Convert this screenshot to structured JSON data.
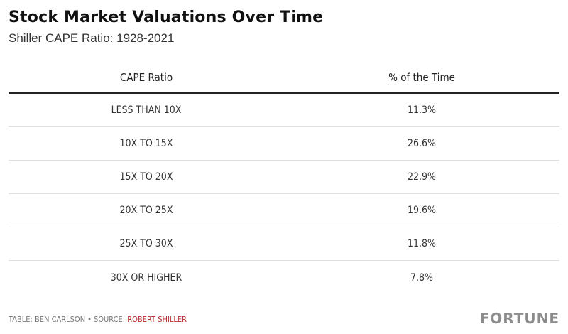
{
  "header": {
    "title": "Stock Market Valuations Over Time",
    "subtitle": "Shiller CAPE Ratio: 1928-2021"
  },
  "chart_data": {
    "type": "table",
    "columns": [
      "CAPE Ratio",
      "% of the Time"
    ],
    "rows": [
      [
        "LESS THAN 10X",
        "11.3%"
      ],
      [
        "10X TO 15X",
        "26.6%"
      ],
      [
        "15X TO 20X",
        "22.9%"
      ],
      [
        "20X TO 25X",
        "19.6%"
      ],
      [
        "25X TO 30X",
        "11.8%"
      ],
      [
        "30X OR HIGHER",
        "7.8%"
      ]
    ]
  },
  "footer": {
    "credit": "TABLE: BEN CARLSON",
    "separator": "•",
    "source_prefix": "SOURCE:",
    "source_link": "ROBERT SHILLER",
    "logo": "FORTUNE"
  },
  "colors": {
    "link": "#b4282e",
    "logo": "#8c8c8c"
  }
}
